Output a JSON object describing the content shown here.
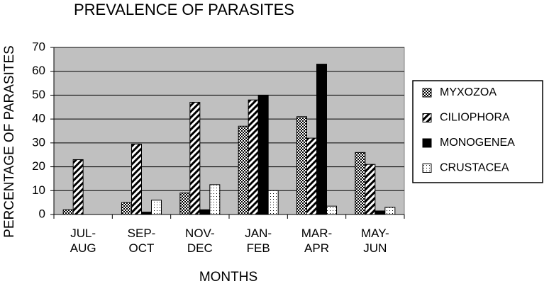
{
  "chart_data": {
    "type": "bar",
    "title": "PREVALENCE OF PARASITES",
    "x_label": "MONTHS",
    "y_label": "PERCENTAGE OF PARASITES",
    "categories": [
      "JUL-\nAUG",
      "SEP-\nOCT",
      "NOV-\nDEC",
      "JAN-\nFEB",
      "MAR-\nAPR",
      "MAY-\nJUN"
    ],
    "series": [
      {
        "name": "MYXOZOA",
        "color": "#000000",
        "pattern": "checker",
        "values": [
          2,
          5,
          9,
          37,
          41,
          26
        ]
      },
      {
        "name": "CILIOPHORA",
        "color": "#000000",
        "pattern": "diagonal",
        "values": [
          23,
          29.5,
          47,
          48,
          32,
          21
        ]
      },
      {
        "name": "MONOGENEA",
        "color": "#000000",
        "pattern": "solid",
        "values": [
          0,
          1,
          2,
          50,
          63,
          1.5
        ]
      },
      {
        "name": "CRUSTACEA",
        "color": "#000000",
        "pattern": "dots",
        "values": [
          0,
          6,
          12.5,
          10,
          3.5,
          3
        ]
      }
    ],
    "ylim": [
      0,
      70
    ],
    "yticks": [
      0,
      10,
      20,
      30,
      40,
      50,
      60,
      70
    ],
    "grid": true,
    "plot_background": "#c0c0c0",
    "legend": "right"
  }
}
